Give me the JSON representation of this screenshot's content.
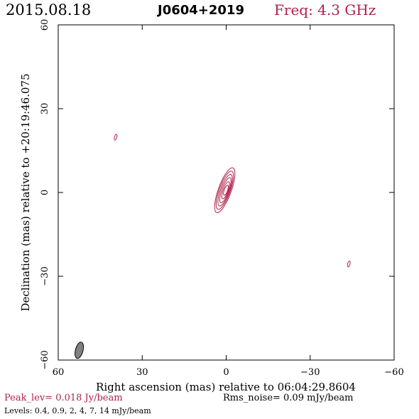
{
  "header": {
    "date": "2015.08.18",
    "source": "J0604+2019",
    "freq": "Freq: 4.3 GHz"
  },
  "footer": {
    "peak": "Peak_lev=  0.018 Jy/beam",
    "rms": "Rms_noise= 0.09 mJy/beam",
    "levels": "Levels: 0.4, 0.9,    2,    4,    7,   14 mJy/beam"
  },
  "colors": {
    "contour": "#b0204a",
    "beam_fill": "#808080",
    "frame": "#000000"
  },
  "chart_data": {
    "type": "contour",
    "xlabel": "Right ascension (mas) relative to 06:04:29.8604",
    "ylabel": "Declination (mas) relative to +20:19:46.075",
    "xlim": [
      60,
      -60
    ],
    "ylim": [
      -60,
      60
    ],
    "xticks": [
      60,
      30,
      0,
      -30,
      -60
    ],
    "yticks": [
      -60,
      -30,
      0,
      30,
      60
    ],
    "xtick_labels": [
      "60",
      "30",
      "0",
      "−30",
      "−60"
    ],
    "ytick_labels": [
      "−60",
      "−30",
      "0",
      "30",
      "60"
    ],
    "levels_mJy": [
      0.4,
      0.9,
      2,
      4,
      7,
      14
    ],
    "peak_Jy_per_beam": 0.018,
    "rms_mJy_per_beam": 0.09,
    "beam": {
      "x": 52.5,
      "y": -56.5,
      "major": 6.0,
      "minor": 2.7,
      "pa_deg": 15
    },
    "components": [
      {
        "name": "core-level-1",
        "x": 0.5,
        "y": 0.8,
        "major": 17.0,
        "minor": 4.6,
        "pa_deg": 20
      },
      {
        "name": "core-level-2",
        "x": 0.5,
        "y": 0.8,
        "major": 14.5,
        "minor": 3.9,
        "pa_deg": 20
      },
      {
        "name": "core-level-3",
        "x": 0.4,
        "y": 0.8,
        "major": 12.0,
        "minor": 3.2,
        "pa_deg": 20
      },
      {
        "name": "core-level-4",
        "x": 0.3,
        "y": 0.8,
        "major": 9.5,
        "minor": 2.5,
        "pa_deg": 20
      },
      {
        "name": "core-level-5",
        "x": 0.2,
        "y": 0.8,
        "major": 6.5,
        "minor": 1.8,
        "pa_deg": 20
      },
      {
        "name": "core-level-6",
        "x": 0.1,
        "y": 0.8,
        "major": 3.8,
        "minor": 1.2,
        "pa_deg": 20
      },
      {
        "name": "blob-upper-left",
        "x": 39.5,
        "y": 19.8,
        "major": 2.2,
        "minor": 0.8,
        "pa_deg": 15
      },
      {
        "name": "blob-lower-right",
        "x": -43.8,
        "y": -25.6,
        "major": 2.2,
        "minor": 0.8,
        "pa_deg": 15
      }
    ]
  }
}
